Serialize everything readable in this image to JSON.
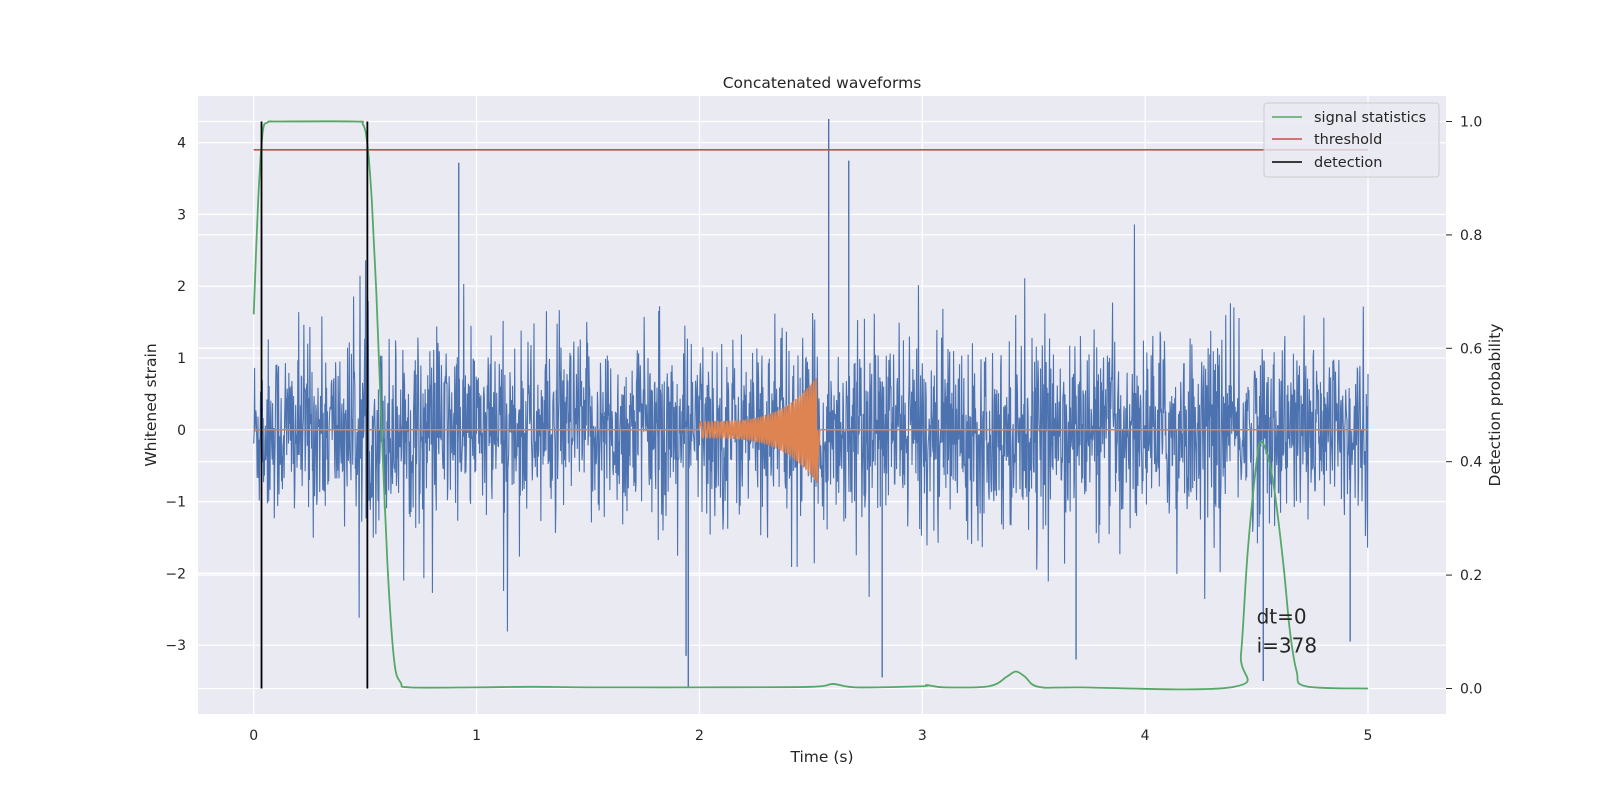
{
  "chart_data": {
    "type": "line",
    "title": "Concatenated waveforms",
    "xlabel": "Time (s)",
    "ylabel": "Whitened strain",
    "y2label": "Detection probability",
    "xlim": [
      -0.25,
      5.35
    ],
    "ylim": [
      -3.96,
      4.65
    ],
    "y2lim": [
      -0.045,
      1.045
    ],
    "xticks": [
      0,
      1,
      2,
      3,
      4,
      5
    ],
    "xtick_labels": [
      "0",
      "1",
      "2",
      "3",
      "4",
      "5"
    ],
    "yticks": [
      -3,
      -2,
      -1,
      0,
      1,
      2,
      3,
      4
    ],
    "ytick_labels": [
      "−3",
      "−2",
      "−1",
      "0",
      "1",
      "2",
      "3",
      "4"
    ],
    "y2ticks": [
      0.0,
      0.2,
      0.4,
      0.6,
      0.8,
      1.0
    ],
    "y2tick_labels": [
      "0.0",
      "0.2",
      "0.4",
      "0.6",
      "0.8",
      "1.0"
    ],
    "grid": true,
    "legend_position": "top-right",
    "legend": [
      {
        "name": "signal statistics",
        "color": "#55a868"
      },
      {
        "name": "threshold",
        "color": "#c44e52"
      },
      {
        "name": "detection",
        "color": "#000000"
      }
    ],
    "series": [
      {
        "name": "whitened strain",
        "axis": "left",
        "color": "#4c72b0",
        "description": "whitened detector noise, roughly symmetric about 0, typical envelope ±1.5, peaks to +4.3 near t=2.58 and -3.6 near t=1.95",
        "x_range": [
          0,
          5
        ],
        "peaks": [
          {
            "x": 0.92,
            "y": 3.72
          },
          {
            "x": 1.94,
            "y": -3.15
          },
          {
            "x": 1.95,
            "y": -3.6
          },
          {
            "x": 2.58,
            "y": 4.33
          },
          {
            "x": 2.67,
            "y": 3.75
          },
          {
            "x": 2.82,
            "y": -3.45
          },
          {
            "x": 3.69,
            "y": -3.2
          },
          {
            "x": 4.53,
            "y": -3.5
          },
          {
            "x": 4.92,
            "y": -2.95
          }
        ]
      },
      {
        "name": "injected signal",
        "axis": "left",
        "color": "#dd8452",
        "description": "chirp waveform from t=2.0 to t=2.53, amplitude growing to about 0.75, flat elsewhere",
        "x_range": [
          2.0,
          2.53
        ],
        "amplitude_start": 0.12,
        "amplitude_peak": 0.75
      },
      {
        "name": "signal statistics",
        "axis": "right",
        "color": "#55a868",
        "x": [
          0.0,
          0.02,
          0.04,
          0.06,
          0.08,
          0.1,
          0.45,
          0.49,
          0.51,
          0.53,
          0.55,
          0.57,
          0.6,
          0.63,
          0.66,
          0.7,
          1.0,
          1.25,
          1.5,
          2.0,
          2.5,
          2.6,
          2.7,
          3.0,
          3.02,
          3.1,
          3.3,
          3.38,
          3.42,
          3.46,
          3.52,
          3.7,
          4.4,
          4.43,
          4.46,
          4.5,
          4.52,
          4.55,
          4.58,
          4.62,
          4.65,
          4.68,
          4.72,
          5.0
        ],
        "values": [
          0.66,
          0.86,
          0.98,
          0.998,
          1.0,
          1.0,
          1.0,
          0.995,
          0.96,
          0.86,
          0.7,
          0.5,
          0.22,
          0.05,
          0.01,
          0.002,
          0.002,
          0.003,
          0.002,
          0.002,
          0.003,
          0.008,
          0.002,
          0.004,
          0.006,
          0.002,
          0.004,
          0.021,
          0.03,
          0.021,
          0.003,
          0.002,
          0.003,
          0.06,
          0.24,
          0.4,
          0.435,
          0.41,
          0.35,
          0.22,
          0.1,
          0.03,
          0.004,
          0.0
        ]
      },
      {
        "name": "threshold",
        "axis": "right",
        "color": "#c44e52",
        "x": [
          0,
          5
        ],
        "values": [
          0.95,
          0.95
        ]
      },
      {
        "name": "detection",
        "axis": "right",
        "color": "#000000",
        "vertical_lines": [
          0.035,
          0.51
        ],
        "range": [
          0,
          1
        ]
      }
    ],
    "annotations": [
      {
        "text": "dt=0",
        "x": 4.5,
        "y": -2.7
      },
      {
        "text": "i=378",
        "x": 4.5,
        "y": -3.1
      }
    ]
  }
}
